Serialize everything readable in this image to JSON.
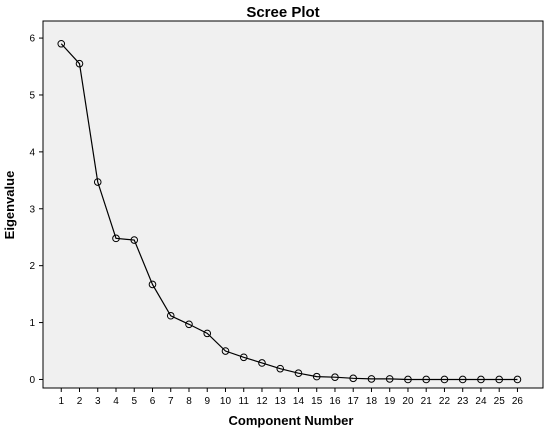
{
  "chart_data": {
    "type": "line",
    "title": "Scree Plot",
    "xlabel": "Component Number",
    "ylabel": "Eigenvalue",
    "x": [
      1,
      2,
      3,
      4,
      5,
      6,
      7,
      8,
      9,
      10,
      11,
      12,
      13,
      14,
      15,
      16,
      17,
      18,
      19,
      20,
      21,
      22,
      23,
      24,
      25,
      26
    ],
    "y": [
      5.9,
      5.55,
      3.47,
      2.48,
      2.45,
      1.67,
      1.12,
      0.97,
      0.81,
      0.5,
      0.39,
      0.29,
      0.19,
      0.11,
      0.05,
      0.04,
      0.02,
      0.01,
      0.01,
      0.0,
      0.0,
      0.0,
      0.0,
      0.0,
      0.0,
      0.0
    ],
    "xticks": [
      "1",
      "2",
      "3",
      "4",
      "5",
      "6",
      "7",
      "8",
      "9",
      "10",
      "11",
      "12",
      "13",
      "14",
      "15",
      "16",
      "17",
      "18",
      "19",
      "20",
      "21",
      "22",
      "23",
      "24",
      "25",
      "26"
    ],
    "yticks": [
      0,
      1,
      2,
      3,
      4,
      5,
      6
    ],
    "xlim": [
      0.0,
      27.4
    ],
    "ylim": [
      -0.15,
      6.3
    ],
    "marker": "open-circle",
    "line_color": "#000000",
    "background_color": "#f0f0f0",
    "grid": false,
    "legend": "none"
  }
}
